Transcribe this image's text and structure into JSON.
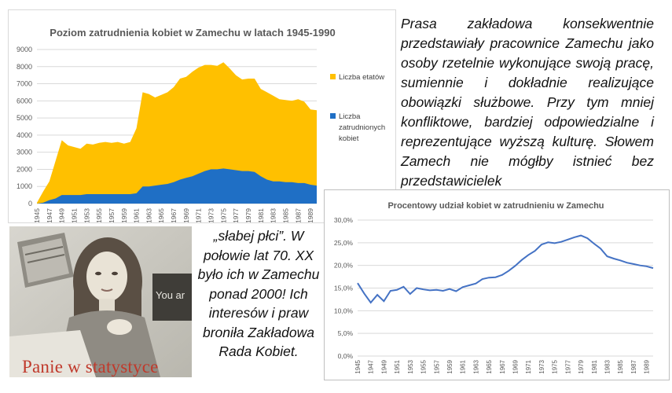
{
  "text_block_1": "Prasa zakładowa konsekwentnie przedstawiały pracownice Zamechu jako osoby rzetelnie wykonujące swoją pracę, sumiennie i dokładnie realizujące obowiązki służbowe. Przy tym mniej konfliktowe, bardziej odpowiedzialne i reprezentujące wyższą kulturę. Słowem Zamech nie mógłby istnieć bez przedstawicielek",
  "text_block_2": "„słabej płci”. W połowie lat 70. XX było ich w Zamechu ponad 2000! Ich interesów i praw broniła Zakładowa Rada Kobiet.",
  "photo": {
    "caption": "Panie w statystyce",
    "sign_text": "You ar"
  },
  "colors": {
    "etaty": "#FFC000",
    "kobiety": "#1F6FC5",
    "line": "#4472C4"
  },
  "chart_data": [
    {
      "type": "area",
      "title": "Poziom zatrudnienia kobiet w Zamechu w latach 1945-1990",
      "xlabel": "",
      "ylabel": "",
      "ylim": [
        0,
        9000
      ],
      "yticks": [
        0,
        1000,
        2000,
        3000,
        4000,
        5000,
        6000,
        7000,
        8000,
        9000
      ],
      "xtick_labels": [
        "1945",
        "1947",
        "1949",
        "1951",
        "1953",
        "1955",
        "1957",
        "1959",
        "1961",
        "1963",
        "1965",
        "1967",
        "1969",
        "1971",
        "1973",
        "1975",
        "1977",
        "1979",
        "1981",
        "1983",
        "1985",
        "1987",
        "1989"
      ],
      "grid": true,
      "legend": "right",
      "x": [
        1945,
        1946,
        1947,
        1948,
        1949,
        1950,
        1951,
        1952,
        1953,
        1954,
        1955,
        1956,
        1957,
        1958,
        1959,
        1960,
        1961,
        1962,
        1963,
        1964,
        1965,
        1966,
        1967,
        1968,
        1969,
        1970,
        1971,
        1972,
        1973,
        1974,
        1975,
        1976,
        1977,
        1978,
        1979,
        1980,
        1981,
        1982,
        1983,
        1984,
        1985,
        1986,
        1987,
        1988,
        1989,
        1990
      ],
      "series": [
        {
          "name": "Liczba etatów",
          "values": [
            50,
            700,
            1300,
            2500,
            3700,
            3400,
            3300,
            3200,
            3500,
            3450,
            3550,
            3600,
            3550,
            3600,
            3500,
            3600,
            4400,
            6500,
            6400,
            6200,
            6350,
            6500,
            6800,
            7300,
            7400,
            7700,
            7950,
            8100,
            8100,
            8050,
            8250,
            7900,
            7500,
            7250,
            7300,
            7300,
            6700,
            6500,
            6300,
            6100,
            6050,
            6000,
            6100,
            5950,
            5500,
            5450
          ]
        },
        {
          "name": "Liczba zatrudnionych kobiet",
          "values": [
            0,
            50,
            200,
            300,
            500,
            500,
            500,
            500,
            550,
            550,
            550,
            550,
            550,
            550,
            550,
            550,
            600,
            1000,
            1000,
            1050,
            1100,
            1150,
            1250,
            1400,
            1500,
            1600,
            1750,
            1900,
            2000,
            2000,
            2050,
            2000,
            1950,
            1900,
            1900,
            1850,
            1600,
            1400,
            1300,
            1300,
            1250,
            1250,
            1200,
            1200,
            1100,
            1050
          ]
        }
      ]
    },
    {
      "type": "line",
      "title": "Procentowy udział kobiet w zatrudnieniu w Zamechu",
      "xlabel": "",
      "ylabel": "",
      "ylim": [
        0,
        30
      ],
      "ytick_labels": [
        "0,0%",
        "5,0%",
        "10,0%",
        "15,0%",
        "20,0%",
        "25,0%",
        "30,0%"
      ],
      "xtick_labels": [
        "1945",
        "1947",
        "1949",
        "1951",
        "1953",
        "1955",
        "1957",
        "1959",
        "1961",
        "1963",
        "1965",
        "1967",
        "1969",
        "1971",
        "1973",
        "1975",
        "1977",
        "1979",
        "1981",
        "1983",
        "1985",
        "1987",
        "1989"
      ],
      "grid": true,
      "x": [
        1945,
        1946,
        1947,
        1948,
        1949,
        1950,
        1951,
        1952,
        1953,
        1954,
        1955,
        1956,
        1957,
        1958,
        1959,
        1960,
        1961,
        1962,
        1963,
        1964,
        1965,
        1966,
        1967,
        1968,
        1969,
        1970,
        1971,
        1972,
        1973,
        1974,
        1975,
        1976,
        1977,
        1978,
        1979,
        1980,
        1981,
        1982,
        1983,
        1984,
        1985,
        1986,
        1987,
        1988,
        1989,
        1990
      ],
      "series": [
        {
          "values": [
            16.1,
            13.8,
            11.8,
            13.5,
            12.1,
            14.4,
            14.6,
            15.3,
            13.7,
            15.0,
            14.7,
            14.5,
            14.6,
            14.4,
            14.8,
            14.3,
            15.2,
            15.6,
            16.0,
            17.0,
            17.3,
            17.4,
            17.9,
            18.8,
            19.9,
            21.2,
            22.3,
            23.2,
            24.6,
            25.1,
            24.9,
            25.2,
            25.7,
            26.2,
            26.6,
            26.0,
            24.8,
            23.7,
            22.0,
            21.5,
            21.1,
            20.6,
            20.3,
            20.0,
            19.8,
            19.4
          ]
        }
      ]
    }
  ]
}
